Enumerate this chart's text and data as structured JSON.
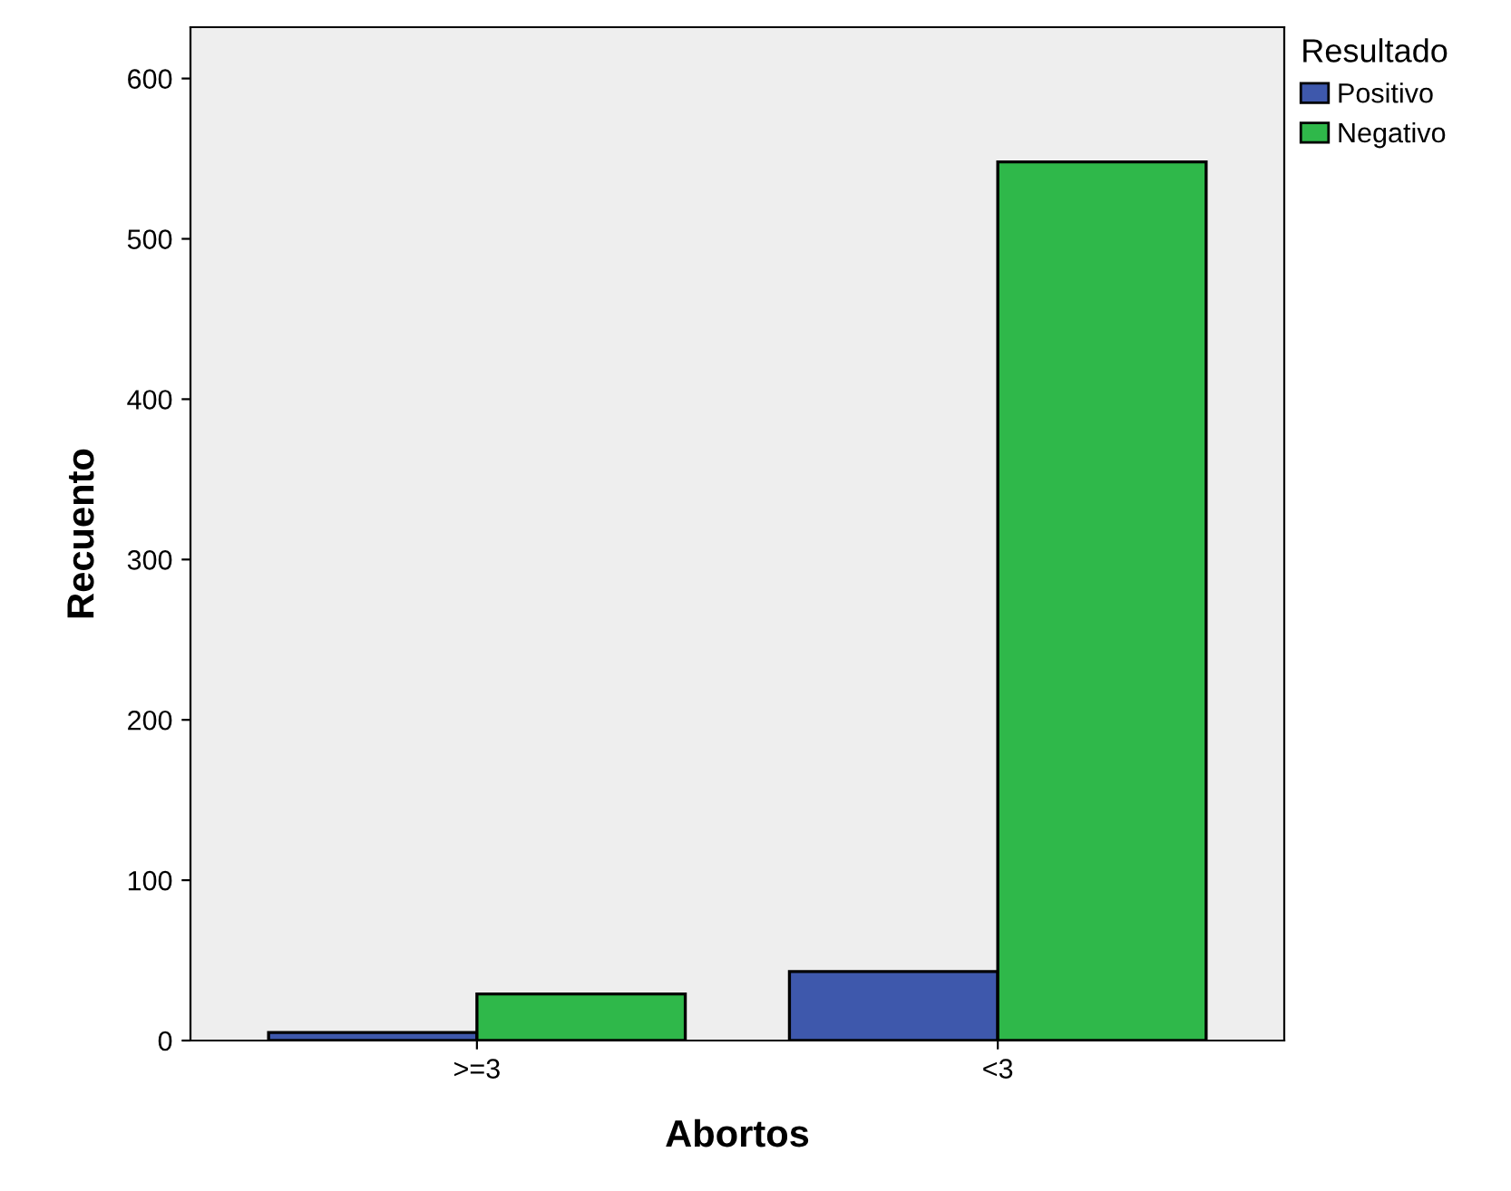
{
  "chart_data": {
    "type": "bar",
    "xlabel": "Abortos",
    "ylabel": "Recuento",
    "legend_title": "Resultado",
    "legend": "top right",
    "categories": [
      ">=3",
      "<3"
    ],
    "series": [
      {
        "name": "Positivo",
        "color": "#3e58ac",
        "values": [
          5,
          43
        ]
      },
      {
        "name": "Negativo",
        "color": "#2fb84a",
        "values": [
          29,
          548
        ]
      }
    ],
    "ylim": [
      0,
      632
    ],
    "yticks": [
      0,
      100,
      200,
      300,
      400,
      500,
      600
    ],
    "grid": false
  }
}
